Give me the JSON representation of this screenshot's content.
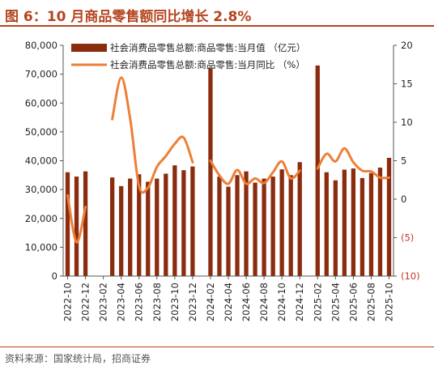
{
  "title": "图 6：10 月商品零售额同比增长 2.8%",
  "source": "资料来源：国家统计局，招商证券",
  "colors": {
    "bar": "#8b2c0e",
    "line": "#ee7f36",
    "accent": "#b5441f",
    "neg": "#c0392b"
  },
  "chart_data": {
    "type": "bar+line",
    "legend": [
      "社会消费品零售总额:商品零售:当月值 （亿元）",
      "社会消费品零售总额:商品零售:当月同比 （%）"
    ],
    "legend_position": "top",
    "y_left": {
      "min": 0,
      "max": 80000,
      "ticks": [
        "0",
        "10,000",
        "20,000",
        "30,000",
        "40,000",
        "50,000",
        "60,000",
        "70,000",
        "80,000"
      ]
    },
    "y_right": {
      "min": -10,
      "max": 20,
      "ticks": [
        "(10)",
        "(5)",
        "0",
        "5",
        "10",
        "15",
        "20"
      ]
    },
    "x_ticks": [
      "2022-10",
      "2022-12",
      "2023-02",
      "2023-04",
      "2023-06",
      "2023-08",
      "2023-10",
      "2023-12",
      "2024-02",
      "2024-04",
      "2024-06",
      "2024-08",
      "2024-10",
      "2024-12",
      "2025-02",
      "2025-04",
      "2025-06",
      "2025-08",
      "2025-10"
    ],
    "months": [
      "2022-10",
      "2022-11",
      "2022-12",
      "2023-01",
      "2023-02",
      "2023-03",
      "2023-04",
      "2023-05",
      "2023-06",
      "2023-07",
      "2023-08",
      "2023-09",
      "2023-10",
      "2023-11",
      "2023-12",
      "2024-01",
      "2024-02",
      "2024-03",
      "2024-04",
      "2024-05",
      "2024-06",
      "2024-07",
      "2024-08",
      "2024-09",
      "2024-10",
      "2024-11",
      "2024-12",
      "2025-01",
      "2025-02",
      "2025-03",
      "2025-04",
      "2025-05",
      "2025-06",
      "2025-07",
      "2025-08",
      "2025-09",
      "2025-10"
    ],
    "bar_values": [
      36000,
      34500,
      36300,
      null,
      null,
      34200,
      31200,
      33800,
      35300,
      32700,
      33800,
      35500,
      38400,
      36700,
      38000,
      null,
      72000,
      34500,
      31000,
      35000,
      36300,
      32400,
      33800,
      34500,
      37000,
      35000,
      39500,
      null,
      73000,
      36000,
      33200,
      36900,
      37300,
      34000,
      35700,
      37600,
      41000
    ],
    "line_values": [
      0.5,
      -5.6,
      -1.0,
      null,
      null,
      10.4,
      15.8,
      10.5,
      1.7,
      1.5,
      4.2,
      5.6,
      7.2,
      8.0,
      4.8,
      null,
      5.0,
      3.1,
      2.0,
      3.8,
      2.0,
      2.7,
      2.1,
      3.5,
      4.9,
      2.7,
      3.7,
      null,
      4.0,
      5.9,
      4.9,
      6.6,
      4.8,
      3.7,
      3.6,
      2.8,
      2.8
    ]
  }
}
